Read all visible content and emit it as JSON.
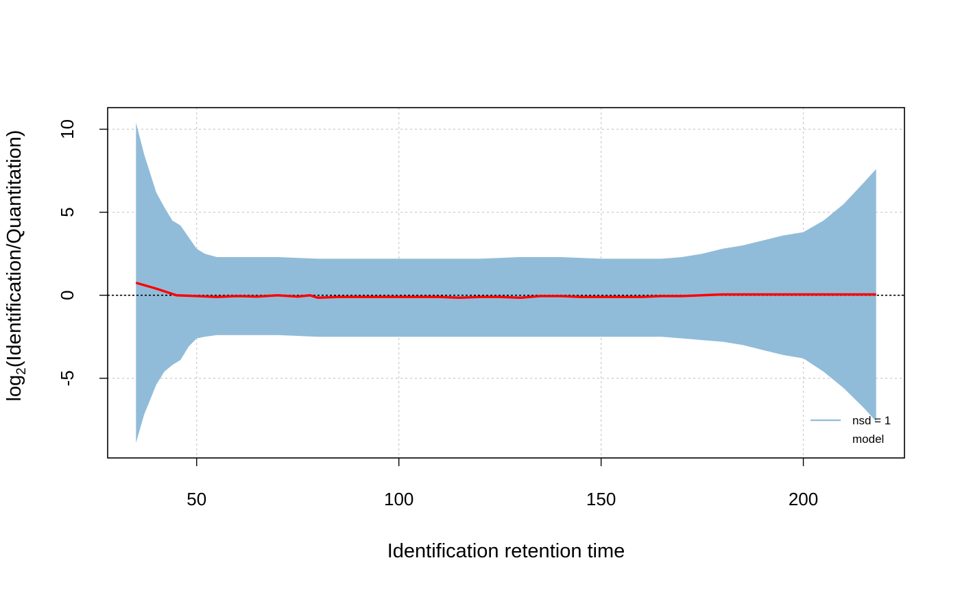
{
  "chart_data": {
    "type": "area",
    "title": "",
    "xlabel": "Identification retention time",
    "ylabel_main": "log",
    "ylabel_sub": "2",
    "ylabel_rest": "(Identification/Quantitation)",
    "xlim": [
      28,
      225
    ],
    "ylim": [
      -9.8,
      11.3
    ],
    "x_ticks": [
      50,
      100,
      150,
      200
    ],
    "x_tick_labels": [
      "50",
      "100",
      "150",
      "200"
    ],
    "y_ticks": [
      -5,
      0,
      5,
      10
    ],
    "y_tick_labels": [
      "-5",
      "0",
      "5",
      "10"
    ],
    "grid": true,
    "reference_line_y": 0,
    "legend": {
      "position": "bottom-right",
      "entries": [
        {
          "label": "nsd = 1",
          "color": "#91bcd9"
        },
        {
          "label": "model",
          "color": ""
        }
      ]
    },
    "colors": {
      "band": "#91bcd9",
      "model": "#ff0000",
      "grid": "#c8c8c8",
      "axis": "#000000"
    },
    "series": [
      {
        "name": "nsd = 1",
        "kind": "band",
        "x": [
          35,
          37,
          40,
          42,
          44,
          46,
          48,
          50,
          52,
          55,
          60,
          70,
          80,
          90,
          100,
          110,
          120,
          130,
          140,
          150,
          160,
          165,
          170,
          175,
          180,
          185,
          190,
          195,
          200,
          205,
          210,
          215,
          218
        ],
        "upper": [
          10.4,
          8.5,
          6.2,
          5.3,
          4.5,
          4.2,
          3.5,
          2.8,
          2.5,
          2.3,
          2.3,
          2.3,
          2.2,
          2.2,
          2.2,
          2.2,
          2.2,
          2.3,
          2.3,
          2.2,
          2.2,
          2.2,
          2.3,
          2.5,
          2.8,
          3.0,
          3.3,
          3.6,
          3.8,
          4.5,
          5.5,
          6.8,
          7.6
        ],
        "lower": [
          -8.9,
          -7.2,
          -5.4,
          -4.6,
          -4.2,
          -3.9,
          -3.1,
          -2.6,
          -2.5,
          -2.4,
          -2.4,
          -2.4,
          -2.5,
          -2.5,
          -2.5,
          -2.5,
          -2.5,
          -2.5,
          -2.5,
          -2.5,
          -2.5,
          -2.5,
          -2.6,
          -2.7,
          -2.8,
          -3.0,
          -3.3,
          -3.6,
          -3.8,
          -4.6,
          -5.6,
          -6.8,
          -7.6
        ]
      },
      {
        "name": "model",
        "kind": "line",
        "x": [
          35,
          40,
          45,
          50,
          55,
          60,
          65,
          70,
          75,
          78,
          80,
          85,
          90,
          95,
          100,
          110,
          115,
          120,
          125,
          130,
          135,
          140,
          145,
          150,
          160,
          165,
          170,
          180,
          190,
          200,
          210,
          218
        ],
        "y": [
          0.75,
          0.4,
          0.0,
          -0.05,
          -0.1,
          -0.05,
          -0.08,
          0.0,
          -0.08,
          0.0,
          -0.15,
          -0.1,
          -0.1,
          -0.1,
          -0.1,
          -0.1,
          -0.15,
          -0.1,
          -0.1,
          -0.15,
          -0.05,
          -0.05,
          -0.1,
          -0.1,
          -0.1,
          -0.05,
          -0.05,
          0.05,
          0.05,
          0.05,
          0.05,
          0.05
        ]
      }
    ]
  }
}
